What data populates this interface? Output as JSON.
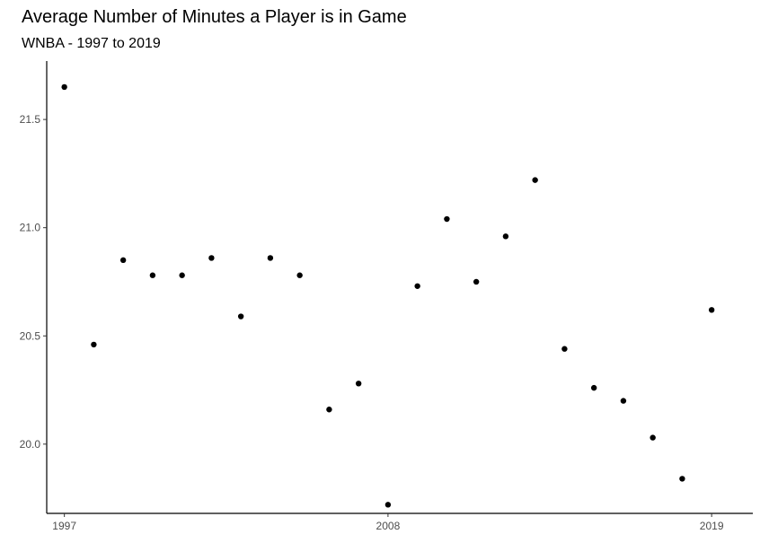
{
  "chart_data": {
    "type": "scatter",
    "title": "Average Number of Minutes a Player is in Game",
    "subtitle": "WNBA - 1997 to 2019",
    "xlabel": "",
    "ylabel": "",
    "xlim": [
      1996.4,
      2020.4
    ],
    "ylim": [
      19.68,
      21.77
    ],
    "x_ticks": [
      1997,
      2008,
      2019
    ],
    "x_tick_labels": [
      "1997",
      "2008",
      "2019"
    ],
    "y_ticks": [
      20.0,
      20.5,
      21.0,
      21.5
    ],
    "y_tick_labels": [
      "20.0",
      "20.5",
      "21.0",
      "21.5"
    ],
    "grid": false,
    "legend": "none",
    "point_color": "#000000",
    "series": [
      {
        "x": [
          1997,
          1998,
          1999,
          2000,
          2001,
          2002,
          2003,
          2004,
          2005,
          2006,
          2007,
          2008,
          2009,
          2010,
          2011,
          2012,
          2013,
          2014,
          2015,
          2016,
          2017,
          2018,
          2019
        ],
        "y": [
          21.65,
          20.46,
          20.85,
          20.78,
          20.78,
          20.86,
          20.59,
          20.86,
          20.78,
          20.16,
          20.28,
          19.72,
          20.73,
          21.04,
          20.75,
          20.96,
          21.22,
          20.44,
          20.26,
          20.2,
          20.03,
          19.84,
          20.62
        ]
      }
    ]
  }
}
